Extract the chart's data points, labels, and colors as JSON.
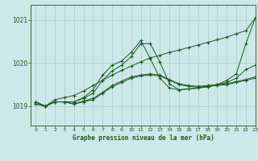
{
  "title": "Graphe pression niveau de la mer (hPa)",
  "bg_color": "#cce8e8",
  "grid_color": "#aacccc",
  "line_color": "#1a5c1a",
  "text_color": "#1a5c1a",
  "xlim": [
    -0.5,
    23
  ],
  "ylim": [
    1018.55,
    1021.35
  ],
  "yticks": [
    1019,
    1020,
    1021
  ],
  "xticks": [
    0,
    1,
    2,
    3,
    4,
    5,
    6,
    7,
    8,
    9,
    10,
    11,
    12,
    13,
    14,
    15,
    16,
    17,
    18,
    19,
    20,
    21,
    22,
    23
  ],
  "series": [
    [
      1019.05,
      1019.0,
      1019.1,
      1019.1,
      1019.05,
      1019.1,
      1019.15,
      1019.3,
      1019.45,
      1019.55,
      1019.65,
      1019.7,
      1019.72,
      1019.7,
      1019.6,
      1019.5,
      1019.46,
      1019.44,
      1019.46,
      1019.48,
      1019.5,
      1019.55,
      1019.6,
      1019.65
    ],
    [
      1019.1,
      1019.0,
      1019.1,
      1019.1,
      1019.05,
      1019.12,
      1019.18,
      1019.32,
      1019.48,
      1019.58,
      1019.68,
      1019.72,
      1019.75,
      1019.72,
      1019.62,
      1019.52,
      1019.48,
      1019.46,
      1019.48,
      1019.5,
      1019.52,
      1019.57,
      1019.62,
      1019.68
    ],
    [
      1019.1,
      1019.0,
      1019.1,
      1019.1,
      1019.1,
      1019.18,
      1019.3,
      1019.6,
      1019.82,
      1019.95,
      1020.15,
      1020.45,
      1020.45,
      1020.02,
      1019.52,
      1019.38,
      1019.4,
      1019.42,
      1019.45,
      1019.5,
      1019.55,
      1019.65,
      1019.85,
      1019.95
    ],
    [
      1019.1,
      1019.0,
      1019.1,
      1019.1,
      1019.1,
      1019.2,
      1019.38,
      1019.72,
      1019.95,
      1020.05,
      1020.25,
      1020.52,
      1020.1,
      1019.65,
      1019.42,
      1019.38,
      1019.4,
      1019.42,
      1019.45,
      1019.5,
      1019.6,
      1019.75,
      1020.45,
      1021.05
    ],
    [
      1019.05,
      1019.0,
      1019.15,
      1019.2,
      1019.25,
      1019.35,
      1019.48,
      1019.6,
      1019.72,
      1019.83,
      1019.93,
      1020.03,
      1020.12,
      1020.18,
      1020.25,
      1020.3,
      1020.36,
      1020.42,
      1020.48,
      1020.54,
      1020.6,
      1020.68,
      1020.75,
      1021.05
    ]
  ]
}
